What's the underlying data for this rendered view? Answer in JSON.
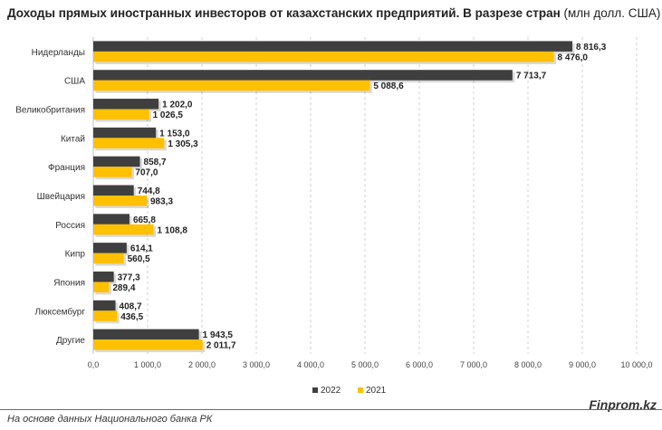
{
  "title": {
    "main": "Доходы прямых иностранных инвесторов от казахстанских предприятий. В разрезе стран",
    "unit": " (млн долл. США)"
  },
  "footer": {
    "source": "На основе данных Национального банка РК",
    "brand": "Finprom.kz"
  },
  "colors": {
    "s2022": "#3f3f3f",
    "s2021": "#ffc000",
    "grid": "#d0d0d0"
  },
  "chart_data": {
    "type": "bar",
    "orientation": "horizontal",
    "categories": [
      "Нидерланды",
      "США",
      "Великобритания",
      "Китай",
      "Франция",
      "Швейцария",
      "Россия",
      "Кипр",
      "Япония",
      "Люксембург",
      "Другие"
    ],
    "series": [
      {
        "name": "2022",
        "values": [
          8816.3,
          7713.7,
          1202.0,
          1153.0,
          858.7,
          744.8,
          665.8,
          614.1,
          377.3,
          408.7,
          1943.5
        ],
        "labels": [
          "8 816,3",
          "7 713,7",
          "1 202,0",
          "1 153,0",
          "858,7",
          "744,8",
          "665,8",
          "614,1",
          "377,3",
          "408,7",
          "1 943,5"
        ]
      },
      {
        "name": "2021",
        "values": [
          8476.0,
          5088.6,
          1026.5,
          1305.3,
          707.0,
          983.3,
          1108.8,
          560.5,
          289.4,
          436.5,
          2011.7
        ],
        "labels": [
          "8 476,0",
          "5 088,6",
          "1 026,5",
          "1 305,3",
          "707,0",
          "983,3",
          "1 108,8",
          "560,5",
          "289,4",
          "436,5",
          "2 011,7"
        ]
      }
    ],
    "xlim": [
      0,
      10000
    ],
    "xticks": [
      0,
      1000,
      2000,
      3000,
      4000,
      5000,
      6000,
      7000,
      8000,
      9000,
      10000
    ],
    "xtick_labels": [
      "0,0",
      "1 000,0",
      "2 000,0",
      "3 000,0",
      "4 000,0",
      "5 000,0",
      "6 000,0",
      "7 000,0",
      "8 000,0",
      "9 000,0",
      "10 000,0"
    ],
    "grid": true,
    "legend": {
      "position": "bottom",
      "entries": [
        "2022",
        "2021"
      ]
    }
  }
}
